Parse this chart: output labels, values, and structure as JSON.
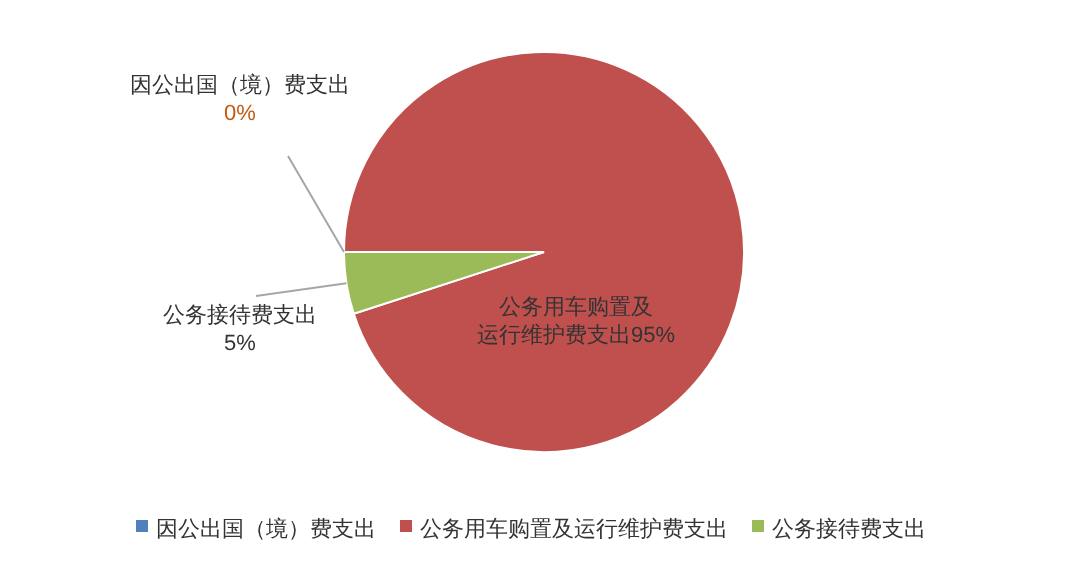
{
  "chart_data": {
    "type": "pie",
    "categories": [
      "因公出国（境）费支出",
      "公务用车购置及运行维护费支出",
      "公务接待费支出"
    ],
    "values": [
      0,
      95,
      5
    ],
    "colors": [
      "#4f81bd",
      "#c0504d",
      "#9bbb59"
    ],
    "value_labels": [
      "0%",
      "95%",
      "5%"
    ],
    "legend": "bottom"
  }
}
